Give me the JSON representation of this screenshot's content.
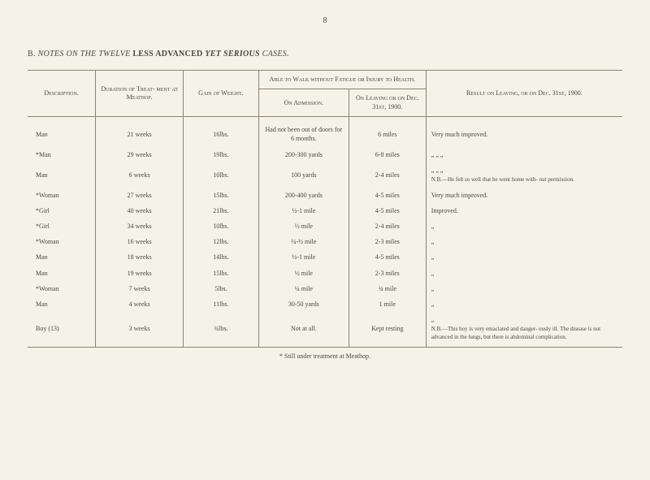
{
  "page_number": "8",
  "title": {
    "prefix": "B.  ",
    "italic1": "NOTES ON THE TWELVE",
    "bold": " LESS ADVANCED ",
    "italic2": "YET SERIOUS",
    "italic3": " CASES."
  },
  "headers": {
    "description": "Description.",
    "duration": "Duration of Treat-\nment at Meathop.",
    "gain": "Gain of Weight.",
    "able": "Able to Walk without Fatigue or\nInjury to Health.",
    "admission": "On Admission.",
    "leaving_sub": "On Leaving or on\nDec. 31st, 1900.",
    "result": "Result on Leaving, or on Dec. 31st, 1900."
  },
  "rows": [
    {
      "desc": "Man",
      "dur": "21 weeks",
      "gain": "16lbs.",
      "adm": "Had not been out of doors for 6 months.",
      "leav": "6 miles",
      "res": "Very much improved."
    },
    {
      "desc": "*Man",
      "dur": "29 weeks",
      "gain": "19lbs.",
      "adm": "200-300 yards",
      "leav": "6-8 miles",
      "res": "„      „      „"
    },
    {
      "desc": "Man",
      "dur": "6 weeks",
      "gain": "10lbs.",
      "adm": "100 yards",
      "leav": "2-4 miles",
      "res": "„      „      „\nN.B.—He felt so well that he went home with-\nout permission."
    },
    {
      "desc": "*Woman",
      "dur": "27 weeks",
      "gain": "15lbs.",
      "adm": "200-400 yards",
      "leav": "4-5 miles",
      "res": "Very much improved."
    },
    {
      "desc": "*Girl",
      "dur": "40 weeks",
      "gain": "21lbs.",
      "adm": "½-1 mile",
      "leav": "4-5 miles",
      "res": "Improved."
    },
    {
      "desc": "*Girl",
      "dur": "34 weeks",
      "gain": "10lbs.",
      "adm": "½ mile",
      "leav": "2-4 miles",
      "res": "„"
    },
    {
      "desc": "*Woman",
      "dur": "16 weeks",
      "gain": "12lbs.",
      "adm": "¼-½ mile",
      "leav": "2-3 miles",
      "res": "„"
    },
    {
      "desc": "Man",
      "dur": "18 weeks",
      "gain": "14lbs.",
      "adm": "½-1 mile",
      "leav": "4-5 miles",
      "res": "„"
    },
    {
      "desc": "Man",
      "dur": "19 weeks",
      "gain": "15lbs.",
      "adm": "½ mile",
      "leav": "2-3 miles",
      "res": "„"
    },
    {
      "desc": "*Woman",
      "dur": "7 weeks",
      "gain": "5lbs.",
      "adm": "¼ mile",
      "leav": "¾ mile",
      "res": "„"
    },
    {
      "desc": "Man",
      "dur": "4 weeks",
      "gain": "11lbs.",
      "adm": "30-50 yards",
      "leav": "1 mile",
      "res": "„"
    },
    {
      "desc": "Boy (13)",
      "dur": "3 weeks",
      "gain": "¾lbs.",
      "adm": "Not at all.",
      "leav": "Kept resting",
      "res": "„\nN.B.—This boy is very emaciated and danger-\nously ill.  The disease is not advanced in the\nlungs, but there is abdominal complication."
    }
  ],
  "footnote": "* Still under treatment at Meathop."
}
